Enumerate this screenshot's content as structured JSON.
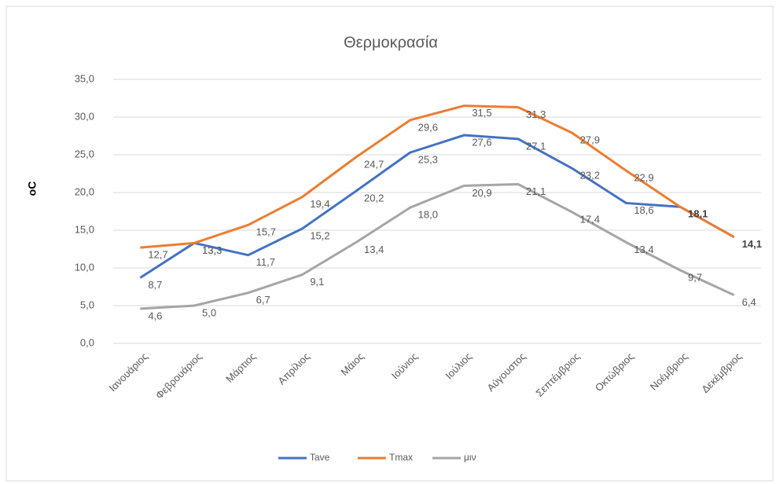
{
  "chart_data": {
    "type": "line",
    "title": "Θερμοκρασία",
    "y_label": "oC",
    "categories": [
      "Ιανουάριος",
      "Φεβρουάριος",
      "Μάρτιος",
      "Απρίλιος",
      "Μάιος",
      "Ιούνιος",
      "Ιούλιος",
      "Αύγουστος",
      "Σεπτέμβριος",
      "Οκτώβριος",
      "Νοέμβριος",
      "Δεκέμβριος"
    ],
    "series": [
      {
        "name": "Tave",
        "color": "#4472c4",
        "values": [
          8.7,
          13.3,
          11.7,
          15.2,
          20.2,
          25.3,
          27.6,
          27.1,
          23.2,
          18.6,
          18.1,
          14.1
        ],
        "value_labels": [
          "8,7",
          "13,3",
          "11,7",
          "15,2",
          "20,2",
          "25,3",
          "27,6",
          "27,1",
          "23,2",
          "18,6",
          "18,1",
          "14,1"
        ]
      },
      {
        "name": "Tmax",
        "color": "#ed7d31",
        "values": [
          12.7,
          13.3,
          15.7,
          19.4,
          24.7,
          29.6,
          31.5,
          31.3,
          27.9,
          22.9,
          18.1,
          14.1
        ],
        "value_labels": [
          "12,7",
          "13,3",
          "15,7",
          "19,4",
          "24,7",
          "29,6",
          "31,5",
          "31,3",
          "27,9",
          "22,9",
          null,
          null
        ]
      },
      {
        "name": "μιν",
        "color": "#a5a5a5",
        "values": [
          4.6,
          5.0,
          6.7,
          9.1,
          13.4,
          18.0,
          20.9,
          21.1,
          17.4,
          13.4,
          9.7,
          6.4
        ],
        "value_labels": [
          "4,6",
          "5,0",
          "6,7",
          "9,1",
          "13,4",
          "18,0",
          "20,9",
          "21,1",
          "17,4",
          "13,4",
          "9,7",
          "6,4"
        ]
      }
    ],
    "ylim": [
      0,
      35
    ],
    "yticks": [
      {
        "value": 0,
        "label": "0,0"
      },
      {
        "value": 5,
        "label": "5,0"
      },
      {
        "value": 10,
        "label": "10,0"
      },
      {
        "value": 15,
        "label": "15,0"
      },
      {
        "value": 20,
        "label": "20,0"
      },
      {
        "value": 25,
        "label": "25,0"
      },
      {
        "value": 30,
        "label": "30,0"
      },
      {
        "value": 35,
        "label": "35,0"
      }
    ],
    "grid": true,
    "legend": "bottom"
  }
}
